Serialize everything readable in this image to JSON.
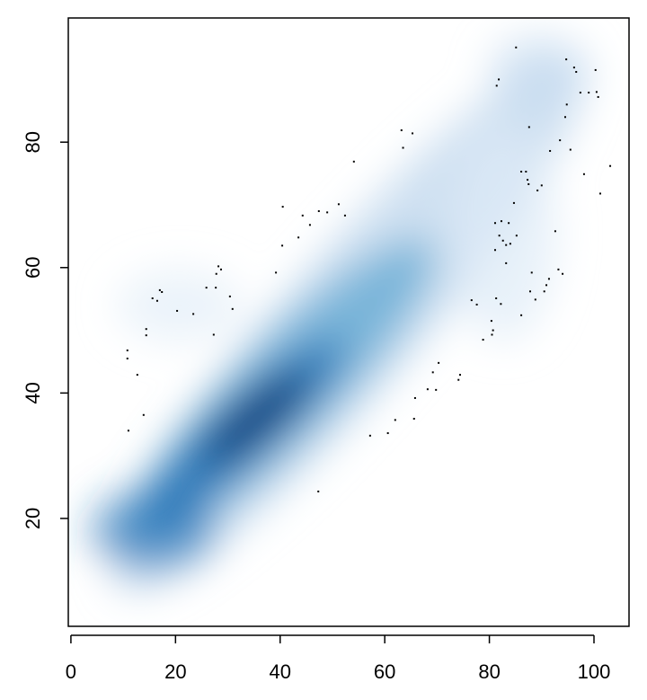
{
  "chart_data": {
    "type": "smoothscatter",
    "xlim": [
      -0.5,
      106.7
    ],
    "ylim": [
      2.8,
      99.8
    ],
    "xticks": [
      0,
      20,
      40,
      60,
      80,
      100
    ],
    "yticks": [
      20,
      40,
      60,
      80
    ],
    "point_color": "#000000",
    "x": [
      11.0,
      13.9,
      12.7,
      10.8,
      10.8,
      14.4,
      14.4,
      15.6,
      16.5,
      17.0,
      17.4,
      20.3,
      23.4,
      25.9,
      27.3,
      27.7,
      27.8,
      28.2,
      28.7,
      30.4,
      30.9,
      39.2,
      40.5,
      40.4,
      43.5,
      44.3,
      45.7,
      47.4,
      49.0,
      51.2,
      52.4,
      54.1,
      47.3,
      57.2,
      60.6,
      62.0,
      65.6,
      65.8,
      68.2,
      69.8,
      69.2,
      70.3,
      74.1,
      74.4,
      63.2,
      65.3,
      63.5,
      76.6,
      77.6,
      78.8,
      80.4,
      80.5,
      80.7,
      81.4,
      81.8,
      81.1,
      81.9,
      81.1,
      82.3,
      81.3,
      82.2,
      82.6,
      83.2,
      83.7,
      84.0,
      83.2,
      85.2,
      86.1,
      85.1,
      84.7,
      86.1,
      87.0,
      87.3,
      87.5,
      87.6,
      87.8,
      88.8,
      88.1,
      89.2,
      90.0,
      90.9,
      90.5,
      91.4,
      91.6,
      92.6,
      93.2,
      93.5,
      94.0,
      94.5,
      94.8,
      94.7,
      95.5,
      96.2,
      96.6,
      97.4,
      98.1,
      99.0,
      100.3,
      100.5,
      100.8,
      101.2,
      103.1
    ],
    "y": [
      34.0,
      36.5,
      42.9,
      46.8,
      45.5,
      50.2,
      49.2,
      55.1,
      54.7,
      56.4,
      56.1,
      53.1,
      52.6,
      56.8,
      49.3,
      56.8,
      59.0,
      60.2,
      59.7,
      55.4,
      53.4,
      59.2,
      69.7,
      63.5,
      64.8,
      68.3,
      66.8,
      69.0,
      68.8,
      70.1,
      68.3,
      76.9,
      24.3,
      33.2,
      33.6,
      35.7,
      35.9,
      39.2,
      40.6,
      40.5,
      43.3,
      44.8,
      42.1,
      42.9,
      81.9,
      81.4,
      79.1,
      54.8,
      54.1,
      48.5,
      51.5,
      49.3,
      50.0,
      89.0,
      90.0,
      62.8,
      65.1,
      67.1,
      67.4,
      55.1,
      54.2,
      64.3,
      63.6,
      67.1,
      63.8,
      60.7,
      65.1,
      52.4,
      95.1,
      70.3,
      75.3,
      75.3,
      74.0,
      73.3,
      82.4,
      56.2,
      54.9,
      59.2,
      72.3,
      73.1,
      57.2,
      56.2,
      58.2,
      78.6,
      65.8,
      59.7,
      80.3,
      59.0,
      84.0,
      86.0,
      93.2,
      78.8,
      91.9,
      91.2,
      87.9,
      74.9,
      87.9,
      91.5,
      88.0,
      87.2,
      71.8,
      76.2
    ]
  }
}
